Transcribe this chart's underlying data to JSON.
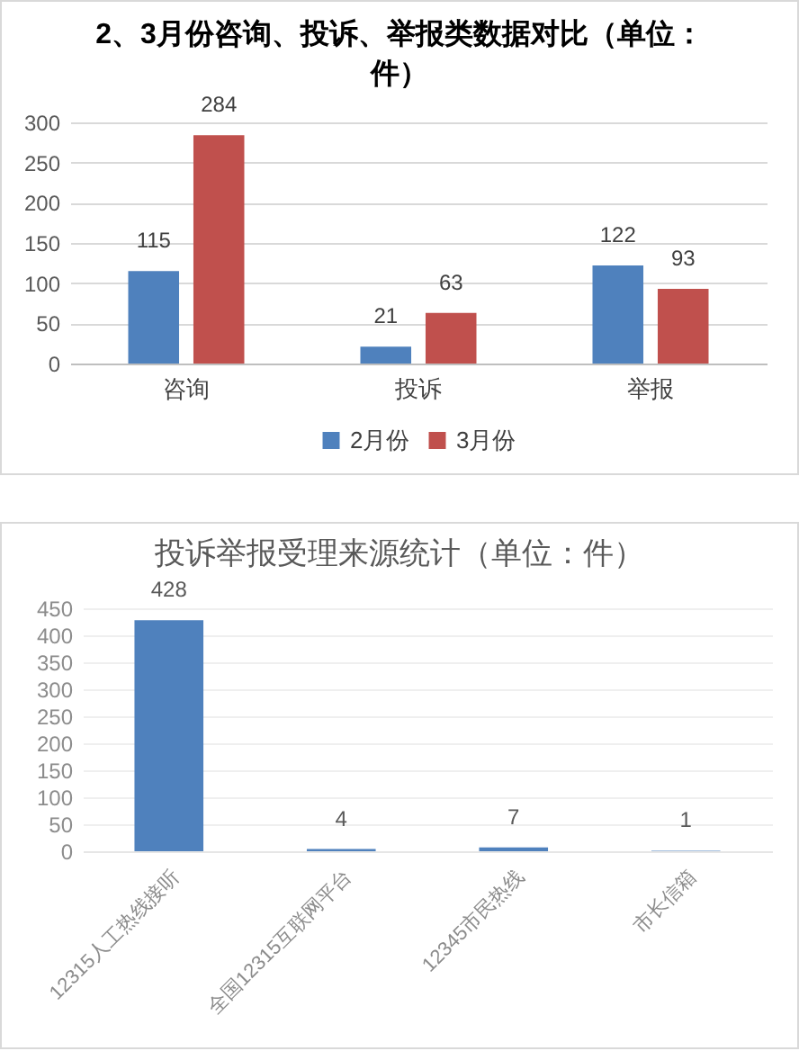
{
  "chart_data": [
    {
      "type": "bar",
      "title": "2、3月份咨询、投诉、举报类数据对比（单位：件）",
      "categories": [
        "咨询",
        "投诉",
        "举报"
      ],
      "series": [
        {
          "name": "2月份",
          "color": "#4f81bd",
          "values": [
            115,
            21,
            122
          ]
        },
        {
          "name": "3月份",
          "color": "#c0504d",
          "values": [
            284,
            63,
            93
          ]
        }
      ],
      "ylim": [
        0,
        300
      ],
      "yticks": [
        0,
        50,
        100,
        150,
        200,
        250,
        300
      ],
      "grid": "y",
      "data_labels": true,
      "legend": "bottom"
    },
    {
      "type": "bar",
      "title": "投诉举报受理来源统计（单位：件）",
      "categories": [
        "12315人工热线接听",
        "全国12315互联网平台",
        "12345市民热线",
        "市长信箱"
      ],
      "values": [
        428,
        4,
        7,
        1
      ],
      "color": "#4f81bd",
      "ylim": [
        0,
        450
      ],
      "yticks": [
        0,
        50,
        100,
        150,
        200,
        250,
        300,
        350,
        400,
        450
      ],
      "grid": "y",
      "data_labels": true
    }
  ]
}
